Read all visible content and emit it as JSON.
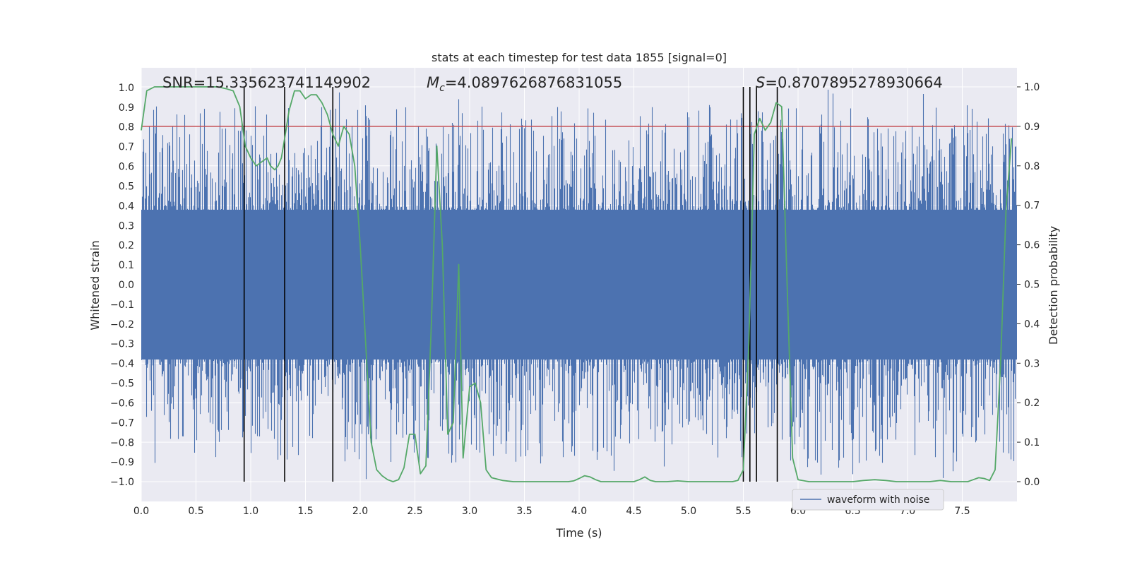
{
  "chart_data": {
    "type": "line",
    "title": "stats at each timestep for test data 1855 [signal=0]",
    "xlabel": "Time (s)",
    "ylabel": "Whitened strain",
    "y2label": "Detection probability",
    "xlim": [
      0.0,
      8.0
    ],
    "ylim": [
      -1.1,
      1.1
    ],
    "y2lim": [
      -0.05,
      1.04
    ],
    "xticks": [
      "0.0",
      "0.5",
      "1.0",
      "1.5",
      "2.0",
      "2.5",
      "3.0",
      "3.5",
      "4.0",
      "4.5",
      "5.0",
      "5.5",
      "6.0",
      "6.5",
      "7.0",
      "7.5"
    ],
    "yticks": [
      "1.0",
      "0.9",
      "0.8",
      "0.7",
      "0.6",
      "0.5",
      "0.4",
      "0.3",
      "0.2",
      "0.1",
      "0.0",
      "-0.1",
      "-0.2",
      "-0.3",
      "-0.4",
      "-0.5",
      "-0.6",
      "-0.7",
      "-0.8",
      "-0.9",
      "-1.0"
    ],
    "y2ticks": [
      "1.0",
      "0.9",
      "0.8",
      "0.7",
      "0.6",
      "0.5",
      "0.4",
      "0.3",
      "0.2",
      "0.1",
      "0.0"
    ],
    "grid": true,
    "legend_position": "lower-right",
    "annotations": {
      "snr": "SNR=15.335623741149902",
      "mc_symbol": "M",
      "mc_sub": "c",
      "mc_value": "=4.0897626876831055",
      "s_symbol": "S",
      "s_value": "=0.8707895278930664"
    },
    "threshold": 0.9,
    "vlines_x": [
      0.94,
      1.31,
      1.75,
      5.5,
      5.56,
      5.62,
      5.81
    ],
    "series": [
      {
        "name": "waveform with noise",
        "color": "#4c72b0",
        "kind": "noise",
        "envelope": {
          "core_amplitude": 0.38,
          "peak_max": 1.0,
          "dense": true
        }
      },
      {
        "color": "#55a868",
        "axis": "y2",
        "x": [
          0.0,
          0.05,
          0.12,
          0.2,
          0.3,
          0.4,
          0.5,
          0.6,
          0.7,
          0.78,
          0.84,
          0.9,
          0.95,
          1.0,
          1.05,
          1.1,
          1.15,
          1.18,
          1.22,
          1.25,
          1.28,
          1.31,
          1.35,
          1.4,
          1.45,
          1.5,
          1.55,
          1.6,
          1.65,
          1.7,
          1.75,
          1.8,
          1.85,
          1.9,
          1.95,
          2.0,
          2.05,
          2.1,
          2.15,
          2.2,
          2.25,
          2.3,
          2.35,
          2.4,
          2.45,
          2.5,
          2.55,
          2.6,
          2.65,
          2.7,
          2.75,
          2.8,
          2.85,
          2.9,
          2.94,
          3.0,
          3.05,
          3.1,
          3.15,
          3.2,
          3.3,
          3.4,
          3.5,
          3.6,
          3.7,
          3.8,
          3.9,
          3.95,
          4.0,
          4.05,
          4.1,
          4.15,
          4.2,
          4.3,
          4.4,
          4.5,
          4.55,
          4.6,
          4.65,
          4.7,
          4.8,
          4.9,
          5.0,
          5.1,
          5.2,
          5.3,
          5.4,
          5.45,
          5.5,
          5.55,
          5.6,
          5.65,
          5.7,
          5.75,
          5.8,
          5.85,
          5.9,
          5.95,
          6.0,
          6.1,
          6.2,
          6.3,
          6.4,
          6.5,
          6.6,
          6.7,
          6.8,
          6.9,
          7.0,
          7.1,
          7.2,
          7.3,
          7.4,
          7.5,
          7.55,
          7.6,
          7.65,
          7.7,
          7.75,
          7.8,
          7.85,
          7.9,
          7.95
        ],
        "values": [
          0.89,
          0.99,
          1.0,
          1.0,
          1.0,
          1.0,
          1.0,
          1.0,
          1.0,
          0.995,
          0.99,
          0.95,
          0.85,
          0.82,
          0.8,
          0.81,
          0.82,
          0.8,
          0.79,
          0.8,
          0.82,
          0.87,
          0.94,
          0.99,
          0.99,
          0.97,
          0.98,
          0.98,
          0.96,
          0.93,
          0.88,
          0.85,
          0.9,
          0.88,
          0.8,
          0.6,
          0.35,
          0.1,
          0.03,
          0.015,
          0.005,
          0.0,
          0.005,
          0.035,
          0.12,
          0.12,
          0.02,
          0.04,
          0.4,
          0.85,
          0.6,
          0.12,
          0.15,
          0.55,
          0.06,
          0.24,
          0.25,
          0.2,
          0.03,
          0.01,
          0.003,
          0.0,
          0.0,
          0.0,
          0.0,
          0.0,
          0.0,
          0.002,
          0.008,
          0.015,
          0.012,
          0.005,
          0.0,
          0.0,
          0.0,
          0.0,
          0.005,
          0.012,
          0.003,
          0.0,
          0.0,
          0.002,
          0.0,
          0.0,
          0.0,
          0.0,
          0.0,
          0.003,
          0.03,
          0.35,
          0.88,
          0.92,
          0.89,
          0.91,
          0.96,
          0.95,
          0.5,
          0.06,
          0.005,
          0.0,
          0.0,
          0.0,
          0.0,
          0.0,
          0.003,
          0.005,
          0.003,
          0.0,
          0.0,
          0.0,
          0.0,
          0.003,
          0.0,
          0.0,
          0.0,
          0.005,
          0.01,
          0.008,
          0.003,
          0.03,
          0.3,
          0.69,
          0.87
        ]
      }
    ]
  }
}
